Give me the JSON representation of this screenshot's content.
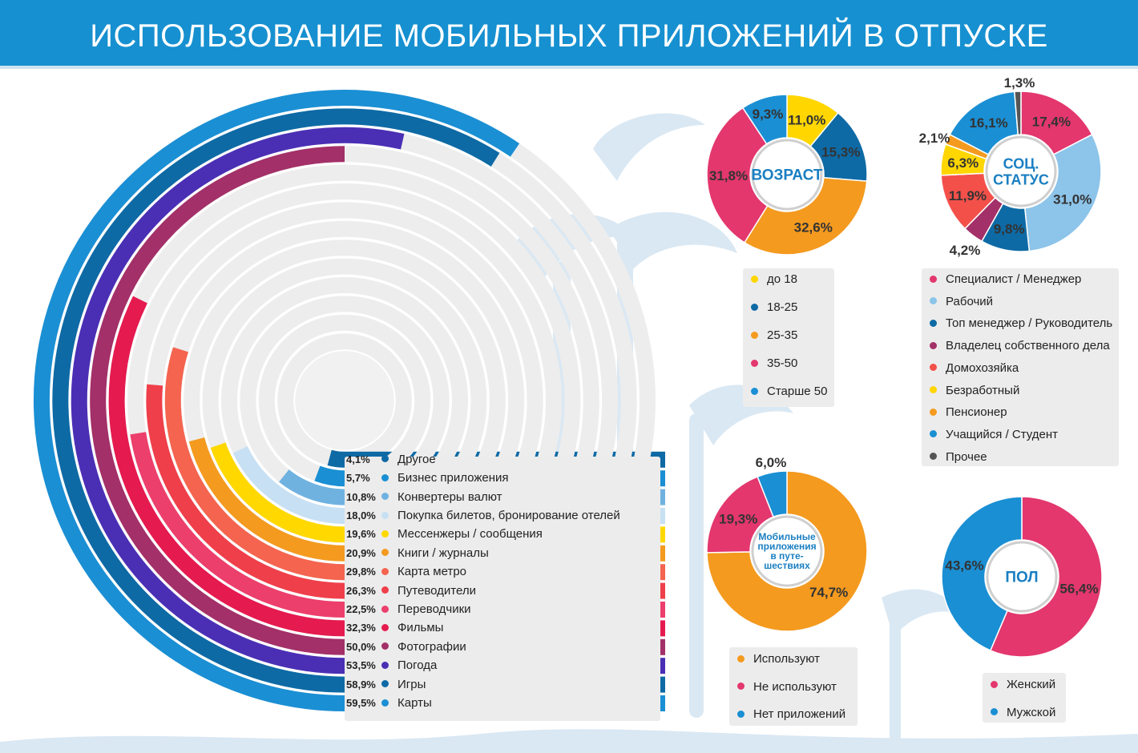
{
  "title": "ИСПОЛЬЗОВАНИЕ МОБИЛЬНЫХ ПРИЛОЖЕНИЙ В ОТПУСКЕ",
  "colors": {
    "header": "#1690d0",
    "track": "#ededed",
    "deco": "#cfe0ee"
  },
  "chart_data": [
    {
      "type": "bar",
      "subtype": "radial",
      "title": "Использование приложений",
      "max_value": 100,
      "categories": [
        "Другое",
        "Бизнес приложения",
        "Конвертеры валют",
        "Покупка билетов, бронирование отелей",
        "Мессенжеры / сообщения",
        "Книги / журналы",
        "Карта метро",
        "Путеводители",
        "Переводчики",
        "Фильмы",
        "Фотографии",
        "Погода",
        "Игры",
        "Карты"
      ],
      "labels": [
        "4,1%",
        "5,7%",
        "10,8%",
        "18,0%",
        "19,6%",
        "20,9%",
        "29,8%",
        "26,3%",
        "22,5%",
        "32,3%",
        "50,0%",
        "53,5%",
        "58,9%",
        "59,5%"
      ],
      "values": [
        4.1,
        5.7,
        10.8,
        18.0,
        19.6,
        20.9,
        29.8,
        26.3,
        22.5,
        32.3,
        50.0,
        53.5,
        58.9,
        59.5
      ],
      "colors": [
        "#0e6aa5",
        "#1a8fd4",
        "#6fb2e0",
        "#c7e0f3",
        "#ffd800",
        "#f49a1f",
        "#f4644f",
        "#ef3f4a",
        "#ec3f6c",
        "#e51a4f",
        "#a33068",
        "#4a2fb5",
        "#0e6aa5",
        "#1a8fd4"
      ]
    },
    {
      "type": "pie",
      "subtype": "donut",
      "title": "ВОЗРАСТ",
      "categories": [
        "до 18",
        "18-25",
        "25-35",
        "35-50",
        "Старше 50"
      ],
      "values": [
        11.0,
        15.3,
        32.6,
        31.8,
        9.3
      ],
      "labels": [
        "11,0%",
        "15,3%",
        "32,6%",
        "31,8%",
        "9,3%"
      ],
      "colors": [
        "#ffd600",
        "#0e6aa5",
        "#f49a1f",
        "#e3376e",
        "#1a8fd4"
      ]
    },
    {
      "type": "pie",
      "subtype": "donut",
      "title": "СОЦ. СТАТУС",
      "categories": [
        "Специалист / Менеджер",
        "Рабочий",
        "Топ менеджер / Руководитель",
        "Владелец собственного дела",
        "Домохозяйка",
        "Безработный",
        "Пенсионер",
        "Учащийся / Студент",
        "Прочее"
      ],
      "values": [
        17.4,
        31.0,
        9.8,
        4.2,
        11.9,
        6.3,
        2.1,
        16.1,
        1.3
      ],
      "labels": [
        "17,4%",
        "31,0%",
        "9,8%",
        "4,2%",
        "11,9%",
        "6,3%",
        "2,1%",
        "16,1%",
        "1,3%"
      ],
      "colors": [
        "#e3376e",
        "#8cc4ea",
        "#0e6aa5",
        "#a33068",
        "#f4504a",
        "#ffd600",
        "#f49a1f",
        "#1a8fd4",
        "#555555"
      ]
    },
    {
      "type": "pie",
      "subtype": "donut",
      "title": "Мобильные приложения в путе- шествиях",
      "categories": [
        "Используют",
        "Не используют",
        "Нет приложений"
      ],
      "values": [
        74.7,
        19.3,
        6.0
      ],
      "labels": [
        "74,7%",
        "19,3%",
        "6,0%"
      ],
      "colors": [
        "#f49a1f",
        "#e3376e",
        "#1a8fd4"
      ]
    },
    {
      "type": "pie",
      "subtype": "donut",
      "title": "ПОЛ",
      "categories": [
        "Женский",
        "Мужской"
      ],
      "values": [
        56.4,
        43.6
      ],
      "labels": [
        "56,4%",
        "43,6%"
      ],
      "colors": [
        "#e3376e",
        "#1a8fd4"
      ]
    }
  ]
}
